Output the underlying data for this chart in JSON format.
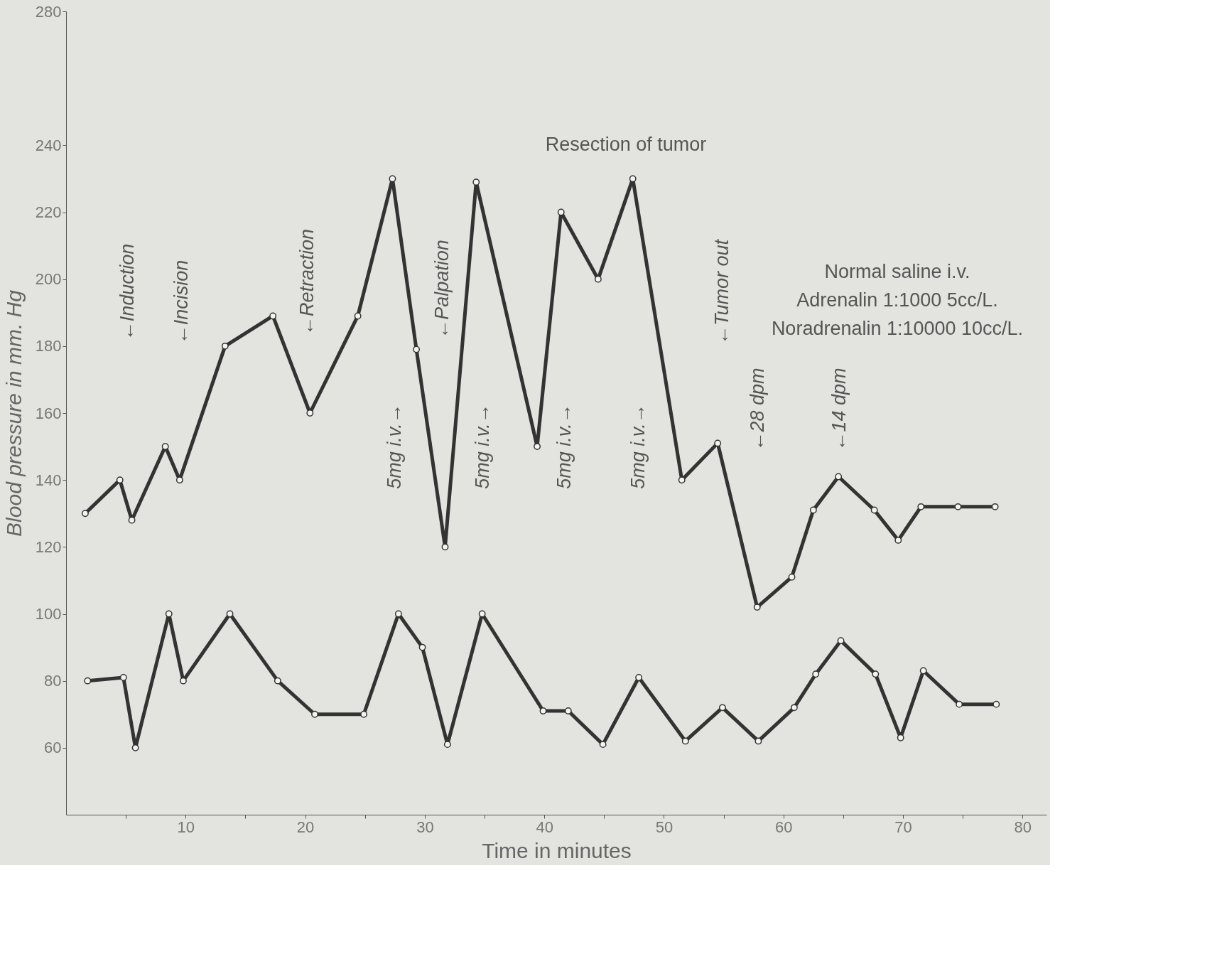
{
  "chart_data": {
    "type": "line",
    "xlabel": "Time in minutes",
    "ylabel": "Blood pressure in mm. Hg",
    "xlim": [
      0,
      82
    ],
    "ylim": [
      40,
      280
    ],
    "xticks": [
      {
        "value": 5,
        "label": null
      },
      10,
      {
        "value": 15,
        "label": null
      },
      20,
      {
        "value": 25,
        "label": null
      },
      30,
      {
        "value": 35,
        "label": null
      },
      40,
      {
        "value": 45,
        "label": null
      },
      50,
      {
        "value": 55,
        "label": null
      },
      60,
      {
        "value": 65,
        "label": null
      },
      70,
      {
        "value": 75,
        "label": null
      },
      80
    ],
    "yticks": [
      60,
      80,
      100,
      120,
      140,
      160,
      180,
      200,
      220,
      240,
      280
    ],
    "grid": false,
    "marker": "circle",
    "line_style": "solid",
    "series": [
      {
        "color": "#333333",
        "x": [
          1.6,
          4.5,
          5.5,
          8.3,
          9.5,
          13.3,
          17.3,
          20.4,
          24.4,
          27.3,
          29.3,
          31.7,
          34.3,
          39.4,
          41.4,
          44.5,
          47.4,
          51.5,
          54.5,
          57.8,
          60.7,
          62.5,
          64.6,
          67.6,
          69.6,
          71.5,
          74.6,
          77.7
        ],
        "values": [
          130,
          140,
          128,
          150,
          140,
          180,
          189,
          160,
          189,
          230,
          179,
          120,
          229,
          150,
          220,
          200,
          230,
          140,
          151,
          102,
          111,
          131,
          141,
          131,
          122,
          132,
          132,
          132
        ]
      },
      {
        "color": "#333333",
        "x": [
          1.8,
          4.8,
          5.8,
          8.6,
          9.8,
          13.7,
          17.7,
          20.8,
          24.9,
          27.8,
          29.8,
          31.9,
          34.8,
          39.9,
          42,
          44.9,
          47.9,
          51.8,
          54.9,
          57.9,
          60.9,
          62.7,
          64.8,
          67.7,
          69.8,
          71.7,
          74.7,
          77.8
        ],
        "values": [
          80,
          81,
          60,
          100,
          80,
          100,
          80,
          70,
          70,
          100,
          90,
          61,
          100,
          71,
          71,
          61,
          81,
          62,
          72,
          62,
          72,
          82,
          92,
          82,
          63,
          83,
          73,
          73
        ]
      }
    ],
    "annotations": [
      "←Induction",
      "←Incision",
      "←Retraction",
      "←Palpation",
      "5mg i.v.→",
      "5mg i.v.→",
      "5mg i.v.→",
      "5mg i.v.→",
      "←Tumor out",
      "←28 dpm",
      "←14 dpm",
      "Resection of tumor",
      "Normal saline i.v.",
      "Adrenalin 1:1000 5cc/L.",
      "Noradrenalin 1:10000 10cc/L."
    ]
  }
}
